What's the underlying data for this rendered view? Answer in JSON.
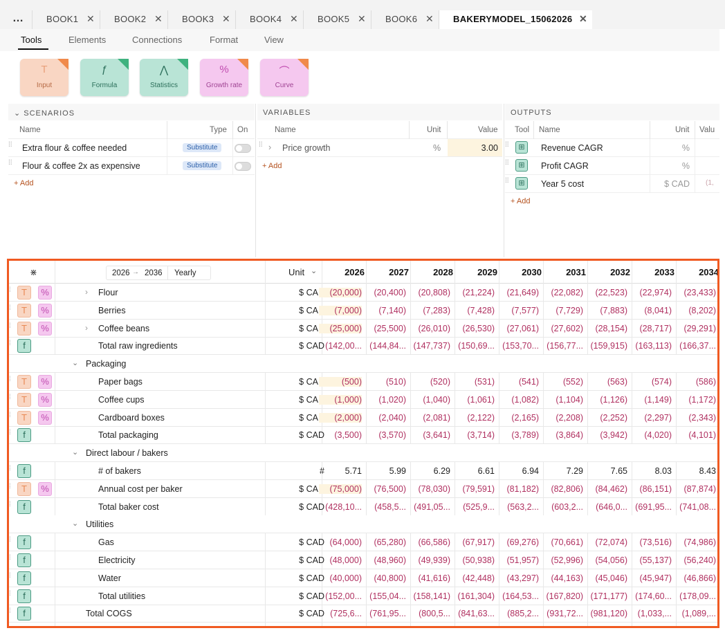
{
  "tabs": [
    {
      "label": "BOOK1"
    },
    {
      "label": "BOOK2"
    },
    {
      "label": "BOOK3"
    },
    {
      "label": "BOOK4"
    },
    {
      "label": "BOOK5"
    },
    {
      "label": "BOOK6"
    },
    {
      "label": "BAKERYMODEL_15062026"
    }
  ],
  "menu": [
    "Tools",
    "Elements",
    "Connections",
    "Format",
    "View"
  ],
  "tools": [
    {
      "label": "Input",
      "icon": "T"
    },
    {
      "label": "Formula",
      "icon": "ƒ"
    },
    {
      "label": "Statistics",
      "icon": "⋀"
    },
    {
      "label": "Growth rate",
      "icon": "%"
    },
    {
      "label": "Curve",
      "icon": "⌒"
    }
  ],
  "scenarios": {
    "title": "SCENARIOS",
    "cols": {
      "name": "Name",
      "type": "Type",
      "on": "On"
    },
    "rows": [
      {
        "name": "Extra flour & coffee needed",
        "type": "Substitute"
      },
      {
        "name": "Flour & coffee 2x as expensive",
        "type": "Substitute"
      }
    ],
    "add": "+ Add"
  },
  "variables": {
    "title": "VARIABLES",
    "cols": {
      "name": "Name",
      "unit": "Unit",
      "value": "Value"
    },
    "rows": [
      {
        "name": "Price growth",
        "unit": "%",
        "value": "3.00"
      }
    ],
    "add": "+ Add"
  },
  "outputs": {
    "title": "OUTPUTS",
    "cols": {
      "tool": "Tool",
      "name": "Name",
      "unit": "Unit",
      "value": "Valu"
    },
    "rows": [
      {
        "name": "Revenue CAGR",
        "unit": "%",
        "value": ""
      },
      {
        "name": "Profit CAGR",
        "unit": "%",
        "value": ""
      },
      {
        "name": "Year 5 cost",
        "unit": "$ CAD",
        "value": "(1,"
      }
    ],
    "add": "+ Add"
  },
  "grid": {
    "range_start": "2026",
    "range_end": "2036",
    "period": "Yearly",
    "unit_header": "Unit",
    "years": [
      "2026",
      "2027",
      "2028",
      "2029",
      "2030",
      "2031",
      "2032",
      "2033",
      "2034"
    ],
    "rows": [
      {
        "label": "Flour",
        "unit": "$ CAD",
        "icons": [
          "T",
          "%"
        ],
        "expand": true,
        "indent": 2,
        "vals": [
          "(20,000)",
          "(20,400)",
          "(20,808)",
          "(21,224)",
          "(21,649)",
          "(22,082)",
          "(22,523)",
          "(22,974)",
          "(23,433)"
        ]
      },
      {
        "label": "Berries",
        "unit": "$ CAD",
        "icons": [
          "T",
          "%"
        ],
        "indent": 2,
        "vals": [
          "(7,000)",
          "(7,140)",
          "(7,283)",
          "(7,428)",
          "(7,577)",
          "(7,729)",
          "(7,883)",
          "(8,041)",
          "(8,202)"
        ]
      },
      {
        "label": "Coffee beans",
        "unit": "$ CAD",
        "icons": [
          "T",
          "%"
        ],
        "expand": true,
        "indent": 2,
        "vals": [
          "(25,000)",
          "(25,500)",
          "(26,010)",
          "(26,530)",
          "(27,061)",
          "(27,602)",
          "(28,154)",
          "(28,717)",
          "(29,291)"
        ]
      },
      {
        "label": "Total raw ingredients",
        "unit": "$ CAD",
        "icons": [
          "f"
        ],
        "indent": 2,
        "vals": [
          "(142,00...",
          "(144,84...",
          "(147,737)",
          "(150,69...",
          "(153,70...",
          "(156,77...",
          "(159,915)",
          "(163,113)",
          "(166,37..."
        ]
      },
      {
        "label": "Packaging",
        "unit": "",
        "icons": [],
        "group": true,
        "indent": 1,
        "vals": []
      },
      {
        "label": "Paper bags",
        "unit": "$ CAD",
        "icons": [
          "T",
          "%"
        ],
        "indent": 2,
        "vals": [
          "(500)",
          "(510)",
          "(520)",
          "(531)",
          "(541)",
          "(552)",
          "(563)",
          "(574)",
          "(586)"
        ]
      },
      {
        "label": "Coffee cups",
        "unit": "$ CAD",
        "icons": [
          "T",
          "%"
        ],
        "indent": 2,
        "vals": [
          "(1,000)",
          "(1,020)",
          "(1,040)",
          "(1,061)",
          "(1,082)",
          "(1,104)",
          "(1,126)",
          "(1,149)",
          "(1,172)"
        ]
      },
      {
        "label": "Cardboard boxes",
        "unit": "$ CAD",
        "icons": [
          "T",
          "%"
        ],
        "indent": 2,
        "vals": [
          "(2,000)",
          "(2,040)",
          "(2,081)",
          "(2,122)",
          "(2,165)",
          "(2,208)",
          "(2,252)",
          "(2,297)",
          "(2,343)"
        ]
      },
      {
        "label": "Total packaging",
        "unit": "$ CAD",
        "icons": [
          "f"
        ],
        "indent": 2,
        "vals": [
          "(3,500)",
          "(3,570)",
          "(3,641)",
          "(3,714)",
          "(3,789)",
          "(3,864)",
          "(3,942)",
          "(4,020)",
          "(4,101)"
        ]
      },
      {
        "label": "Direct labour / bakers",
        "unit": "",
        "icons": [],
        "group": true,
        "indent": 1,
        "vals": []
      },
      {
        "label": "# of bakers",
        "unit": "#",
        "icons": [
          "f"
        ],
        "indent": 2,
        "pos": true,
        "vals": [
          "5.71",
          "5.99",
          "6.29",
          "6.61",
          "6.94",
          "7.29",
          "7.65",
          "8.03",
          "8.43"
        ]
      },
      {
        "label": "Annual cost per baker",
        "unit": "$ CAD",
        "icons": [
          "T",
          "%"
        ],
        "indent": 2,
        "vals": [
          "(75,000)",
          "(76,500)",
          "(78,030)",
          "(79,591)",
          "(81,182)",
          "(82,806)",
          "(84,462)",
          "(86,151)",
          "(87,874)"
        ]
      },
      {
        "label": "Total baker cost",
        "unit": "$ CAD",
        "icons": [
          "f"
        ],
        "indent": 2,
        "vals": [
          "(428,10...",
          "(458,5...",
          "(491,05...",
          "(525,9...",
          "(563,2...",
          "(603,2...",
          "(646,0...",
          "(691,95...",
          "(741,08..."
        ]
      },
      {
        "label": "Utilities",
        "unit": "",
        "icons": [],
        "group": true,
        "indent": 1,
        "vals": []
      },
      {
        "label": "Gas",
        "unit": "$ CAD",
        "icons": [
          "f"
        ],
        "indent": 2,
        "vals": [
          "(64,000)",
          "(65,280)",
          "(66,586)",
          "(67,917)",
          "(69,276)",
          "(70,661)",
          "(72,074)",
          "(73,516)",
          "(74,986)"
        ]
      },
      {
        "label": "Electricity",
        "unit": "$ CAD",
        "icons": [
          "f"
        ],
        "indent": 2,
        "vals": [
          "(48,000)",
          "(48,960)",
          "(49,939)",
          "(50,938)",
          "(51,957)",
          "(52,996)",
          "(54,056)",
          "(55,137)",
          "(56,240)"
        ]
      },
      {
        "label": "Water",
        "unit": "$ CAD",
        "icons": [
          "f"
        ],
        "indent": 2,
        "vals": [
          "(40,000)",
          "(40,800)",
          "(41,616)",
          "(42,448)",
          "(43,297)",
          "(44,163)",
          "(45,046)",
          "(45,947)",
          "(46,866)"
        ]
      },
      {
        "label": "Total utilities",
        "unit": "$ CAD",
        "icons": [
          "f"
        ],
        "indent": 2,
        "vals": [
          "(152,00...",
          "(155,04...",
          "(158,141)",
          "(161,304)",
          "(164,53...",
          "(167,820)",
          "(171,177)",
          "(174,60...",
          "(178,09..."
        ]
      },
      {
        "label": "Total COGS",
        "unit": "$ CAD",
        "icons": [
          "f"
        ],
        "indent": 1,
        "vals": [
          "(725,6...",
          "(761,95...",
          "(800,5...",
          "(841,63...",
          "(885,2...",
          "(931,72...",
          "(981,120)",
          "(1,033,...",
          "(1,089,..."
        ]
      }
    ]
  }
}
